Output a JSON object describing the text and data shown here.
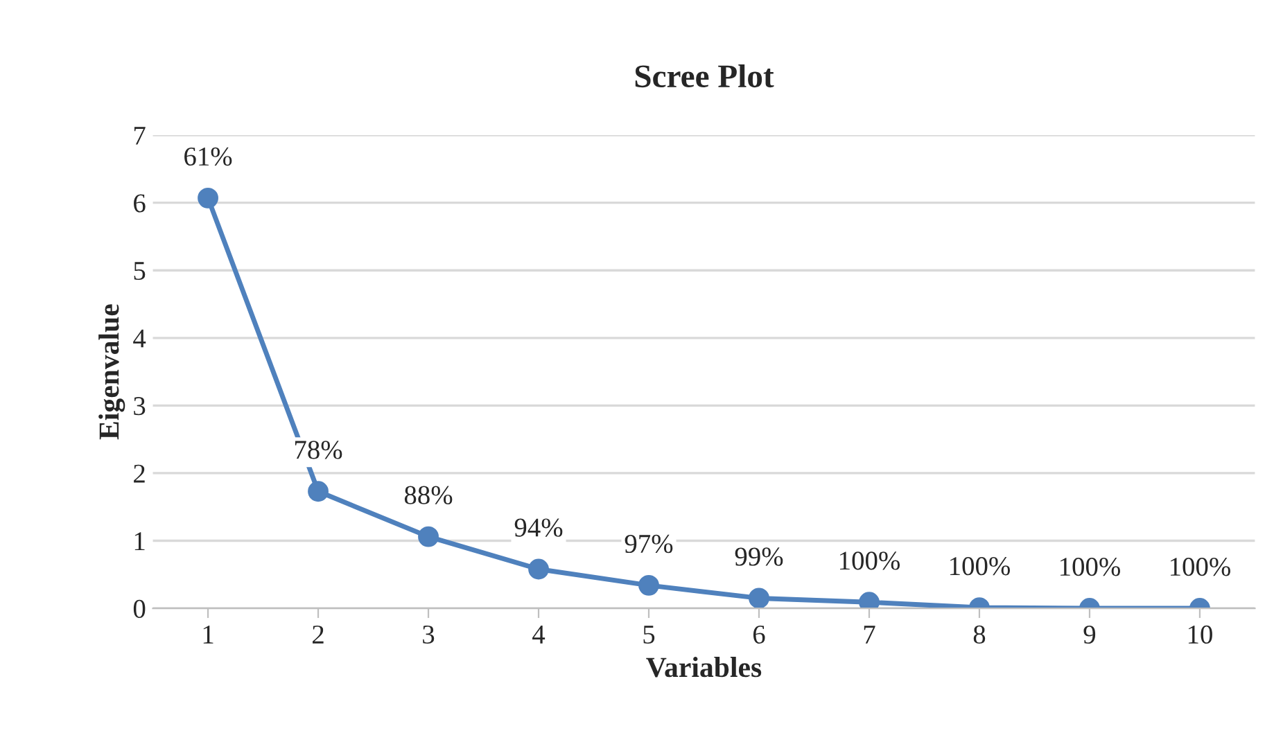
{
  "chart_data": {
    "type": "line",
    "title": "Scree Plot",
    "xlabel": "Variables",
    "ylabel": "Eigenvalue",
    "categories": [
      "1",
      "2",
      "3",
      "4",
      "5",
      "6",
      "7",
      "8",
      "9",
      "10"
    ],
    "series": [
      {
        "color": "#4f81bd",
        "values": [
          6.07,
          1.73,
          1.06,
          0.58,
          0.34,
          0.15,
          0.09,
          0.01,
          0.0,
          0.0
        ]
      }
    ],
    "annotations": [
      {
        "text": "61%",
        "x": "1",
        "y": 6.07
      },
      {
        "text": "78%",
        "x": "2",
        "y": 1.73
      },
      {
        "text": "88%",
        "x": "3",
        "y": 1.06
      },
      {
        "text": "94%",
        "x": "4",
        "y": 0.58
      },
      {
        "text": "97%",
        "x": "5",
        "y": 0.34
      },
      {
        "text": "99%",
        "x": "6",
        "y": 0.15
      },
      {
        "text": "100%",
        "x": "7",
        "y": 0.09
      },
      {
        "text": "100%",
        "x": "8",
        "y": 0.01
      },
      {
        "text": "100%",
        "x": "9",
        "y": 0.0
      },
      {
        "text": "100%",
        "x": "10",
        "y": 0.0
      }
    ],
    "ylim": [
      0,
      7
    ],
    "yticks": [
      0,
      1,
      2,
      3,
      4,
      5,
      6,
      7
    ],
    "grid": "y",
    "marker": "circle",
    "line_style": "solid"
  }
}
